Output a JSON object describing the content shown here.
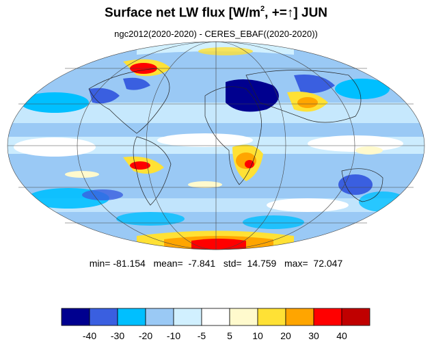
{
  "title": {
    "prefix": "Surface net LW flux [W/m",
    "sup": "2",
    "suffix": ", +=↑]  JUN"
  },
  "subtitle": "ngc2012(2020-2020) - CERES_EBAF((2020-2020))",
  "stats": {
    "min_label": "min=",
    "min": "-81.154",
    "mean_label": "mean=",
    "mean": "-7.841",
    "std_label": "std=",
    "std": "14.759",
    "max_label": "max=",
    "max": "72.047"
  },
  "projection": "mollweide",
  "colorbar": {
    "colors": [
      "#00008f",
      "#3a5fe0",
      "#00bfff",
      "#9ac9f5",
      "#d1f0ff",
      "#ffffff",
      "#fffacd",
      "#ffe135",
      "#ffa500",
      "#ff0000",
      "#c00000"
    ],
    "tick_labels": [
      "-40",
      "-30",
      "-20",
      "-10",
      "-5",
      "5",
      "10",
      "20",
      "30",
      "40"
    ]
  }
}
